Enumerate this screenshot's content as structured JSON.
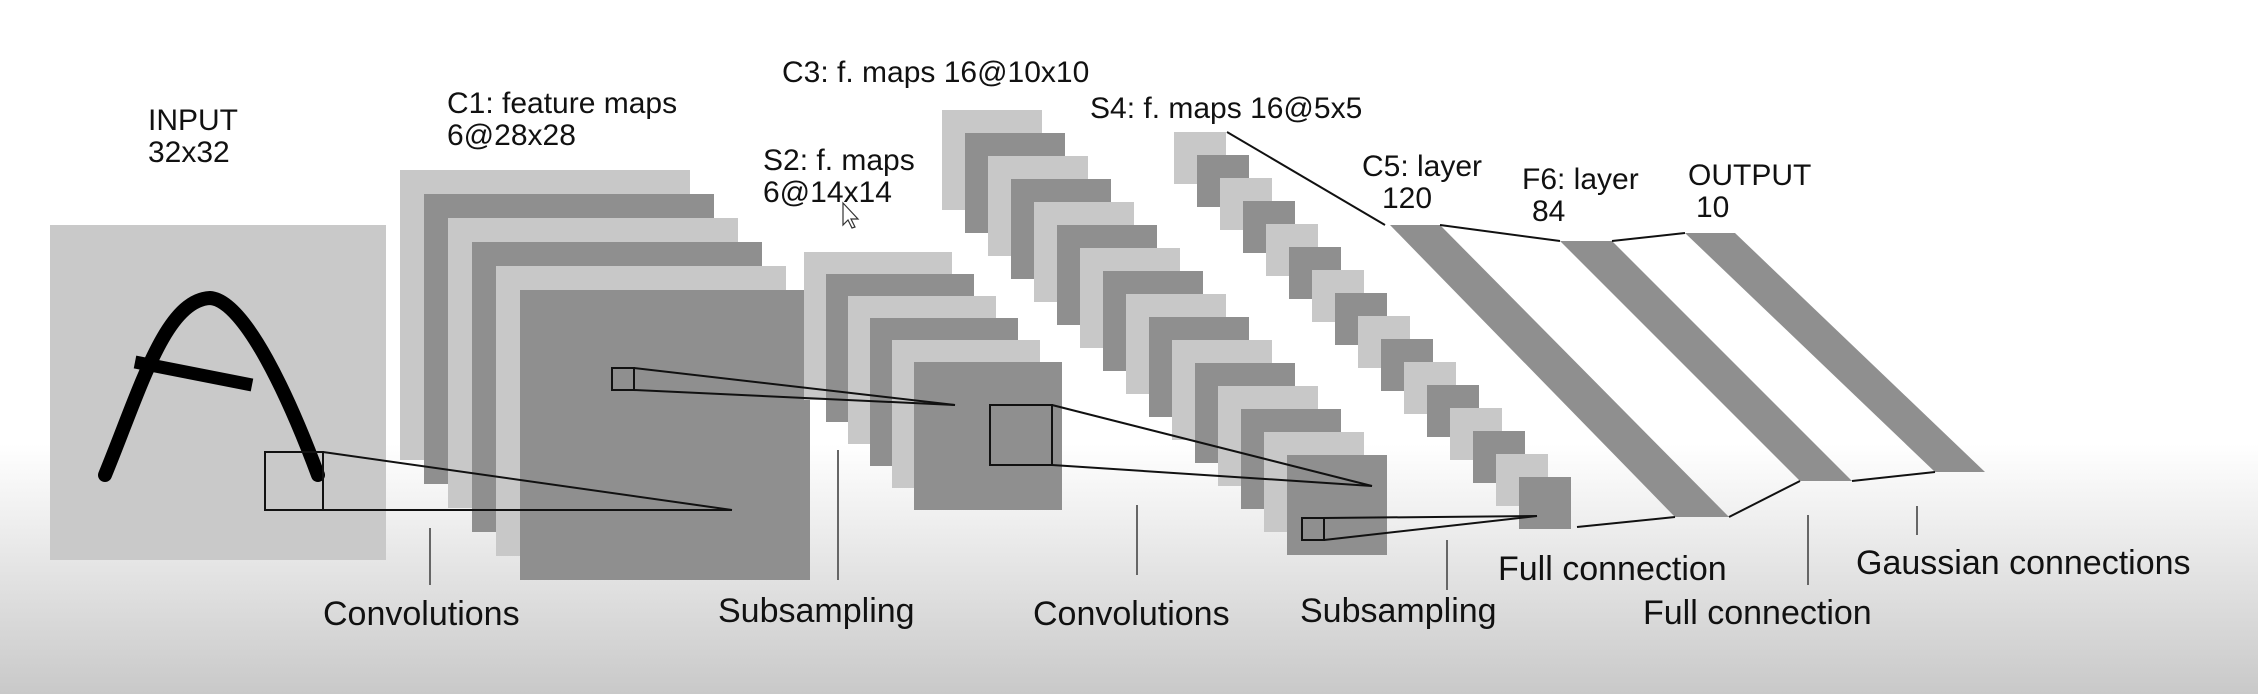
{
  "layers": {
    "input": {
      "title": "INPUT",
      "size": "32x32"
    },
    "c1": {
      "title": "C1: feature maps",
      "size": "6@28x28"
    },
    "s2": {
      "title": "S2: f. maps",
      "size": "6@14x14"
    },
    "c3": {
      "title": "C3: f. maps 16@10x10"
    },
    "s4": {
      "title": "S4: f. maps 16@5x5"
    },
    "c5": {
      "title": "C5: layer",
      "size": "120"
    },
    "f6": {
      "title": "F6: layer",
      "size": "84"
    },
    "output": {
      "title": "OUTPUT",
      "size": "10"
    }
  },
  "operations": {
    "conv1": "Convolutions",
    "sub1": "Subsampling",
    "conv2": "Convolutions",
    "sub2": "Subsampling",
    "full1": "Full connection",
    "full2": "Full connection",
    "gauss": "Gaussian connections"
  },
  "colors": {
    "light_map": "#c8c8c8",
    "dark_map": "#8f8f8f",
    "input_bg": "#c9c9c9",
    "stroke": "#111111"
  }
}
